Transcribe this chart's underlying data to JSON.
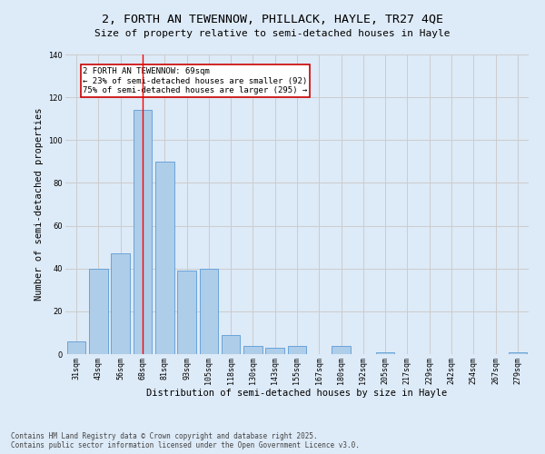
{
  "title": "2, FORTH AN TEWENNOW, PHILLACK, HAYLE, TR27 4QE",
  "subtitle": "Size of property relative to semi-detached houses in Hayle",
  "xlabel": "Distribution of semi-detached houses by size in Hayle",
  "ylabel": "Number of semi-detached properties",
  "categories": [
    "31sqm",
    "43sqm",
    "56sqm",
    "68sqm",
    "81sqm",
    "93sqm",
    "105sqm",
    "118sqm",
    "130sqm",
    "143sqm",
    "155sqm",
    "167sqm",
    "180sqm",
    "192sqm",
    "205sqm",
    "217sqm",
    "229sqm",
    "242sqm",
    "254sqm",
    "267sqm",
    "279sqm"
  ],
  "values": [
    6,
    40,
    47,
    114,
    90,
    39,
    40,
    9,
    4,
    3,
    4,
    0,
    4,
    0,
    1,
    0,
    0,
    0,
    0,
    0,
    1
  ],
  "bar_color": "#aecde8",
  "bar_edge_color": "#5b9bd5",
  "highlight_bar_index": 3,
  "annotation_text": "2 FORTH AN TEWENNOW: 69sqm\n← 23% of semi-detached houses are smaller (92)\n75% of semi-detached houses are larger (295) →",
  "annotation_box_color": "#ffffff",
  "annotation_box_edge_color": "#cc0000",
  "ylim": [
    0,
    140
  ],
  "yticks": [
    0,
    20,
    40,
    60,
    80,
    100,
    120,
    140
  ],
  "grid_color": "#cccccc",
  "bg_color": "#ddeaf7",
  "footer_line1": "Contains HM Land Registry data © Crown copyright and database right 2025.",
  "footer_line2": "Contains public sector information licensed under the Open Government Licence v3.0.",
  "title_fontsize": 9.5,
  "subtitle_fontsize": 8,
  "tick_fontsize": 6,
  "ylabel_fontsize": 7.5,
  "xlabel_fontsize": 7.5,
  "annotation_fontsize": 6.5,
  "footer_fontsize": 5.5
}
